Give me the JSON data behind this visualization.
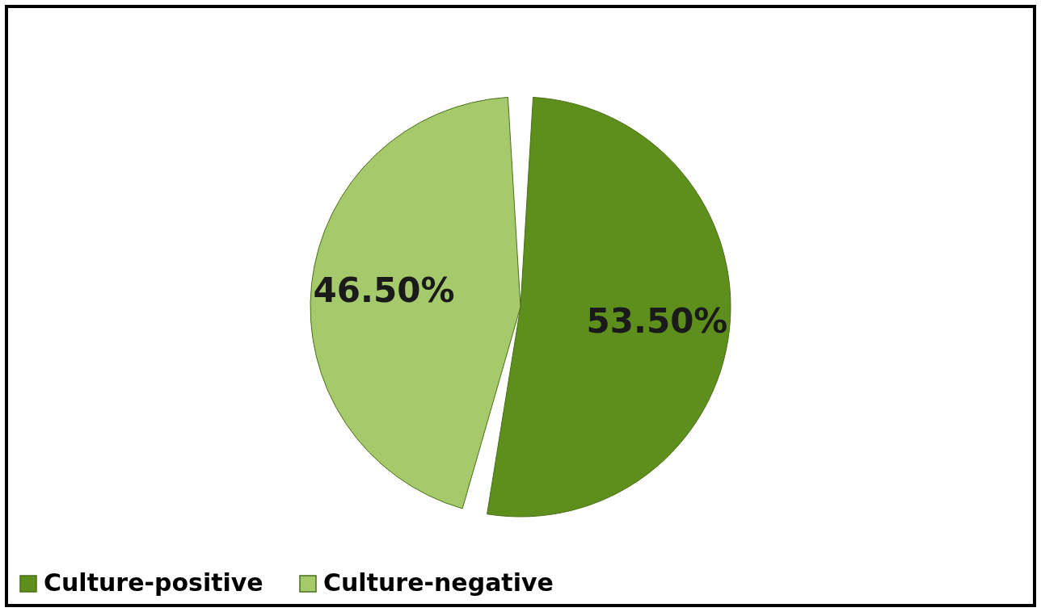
{
  "chart_data": {
    "type": "pie",
    "categories": [
      "Culture-positive",
      "Culture-negative"
    ],
    "values": [
      53.5,
      46.5
    ],
    "colors": [
      "#5e8f1c",
      "#a5c96b"
    ],
    "value_labels": [
      "53.50%",
      "46.50%"
    ],
    "legend": "bottom"
  }
}
